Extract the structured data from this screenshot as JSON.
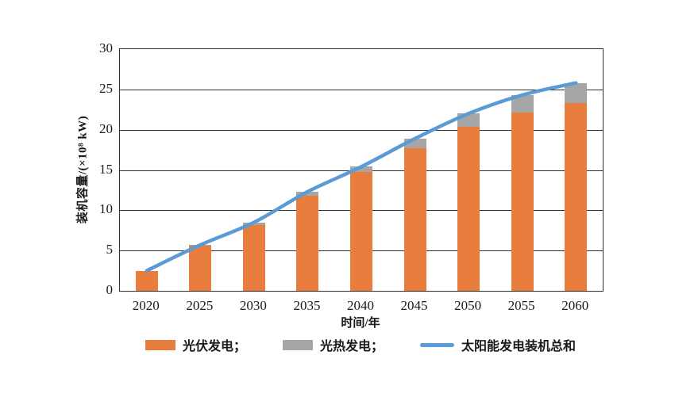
{
  "chart_data": {
    "type": "bar",
    "subtype": "stacked-bars-with-total-line",
    "categories": [
      "2020",
      "2025",
      "2030",
      "2035",
      "2040",
      "2045",
      "2050",
      "2055",
      "2060"
    ],
    "series": [
      {
        "key": "pv",
        "name": "光伏发电",
        "type": "bar",
        "color": "#E87D3D",
        "values": [
          2.5,
          5.6,
          8.2,
          11.8,
          14.8,
          17.7,
          20.4,
          22.1,
          23.3
        ]
      },
      {
        "key": "csp",
        "name": "光热发电",
        "type": "bar",
        "color": "#A6A6A6",
        "values": [
          0,
          0.1,
          0.3,
          0.5,
          0.6,
          1.2,
          1.6,
          2.2,
          2.5
        ]
      },
      {
        "key": "total",
        "name": "太阳能发电装机总和",
        "type": "line",
        "color": "#5B9BD5",
        "values": [
          2.5,
          5.7,
          8.5,
          12.3,
          15.4,
          18.9,
          22.0,
          24.3,
          25.8
        ]
      }
    ],
    "xlabel": "时间/年",
    "ylabel": "装机容量/(×10⁸ kW)",
    "ylim": [
      0,
      30
    ],
    "yticks": [
      0,
      5,
      10,
      15,
      20,
      25,
      30
    ],
    "grid": true,
    "legend_position": "bottom",
    "legend": [
      {
        "key": "pv",
        "label": "光伏发电；",
        "swatch": "bar",
        "color": "#E87D3D"
      },
      {
        "key": "csp",
        "label": "光热发电；",
        "swatch": "bar",
        "color": "#A6A6A6"
      },
      {
        "key": "total",
        "label": "太阳能发电装机总和",
        "swatch": "line",
        "color": "#5B9BD5"
      }
    ]
  }
}
